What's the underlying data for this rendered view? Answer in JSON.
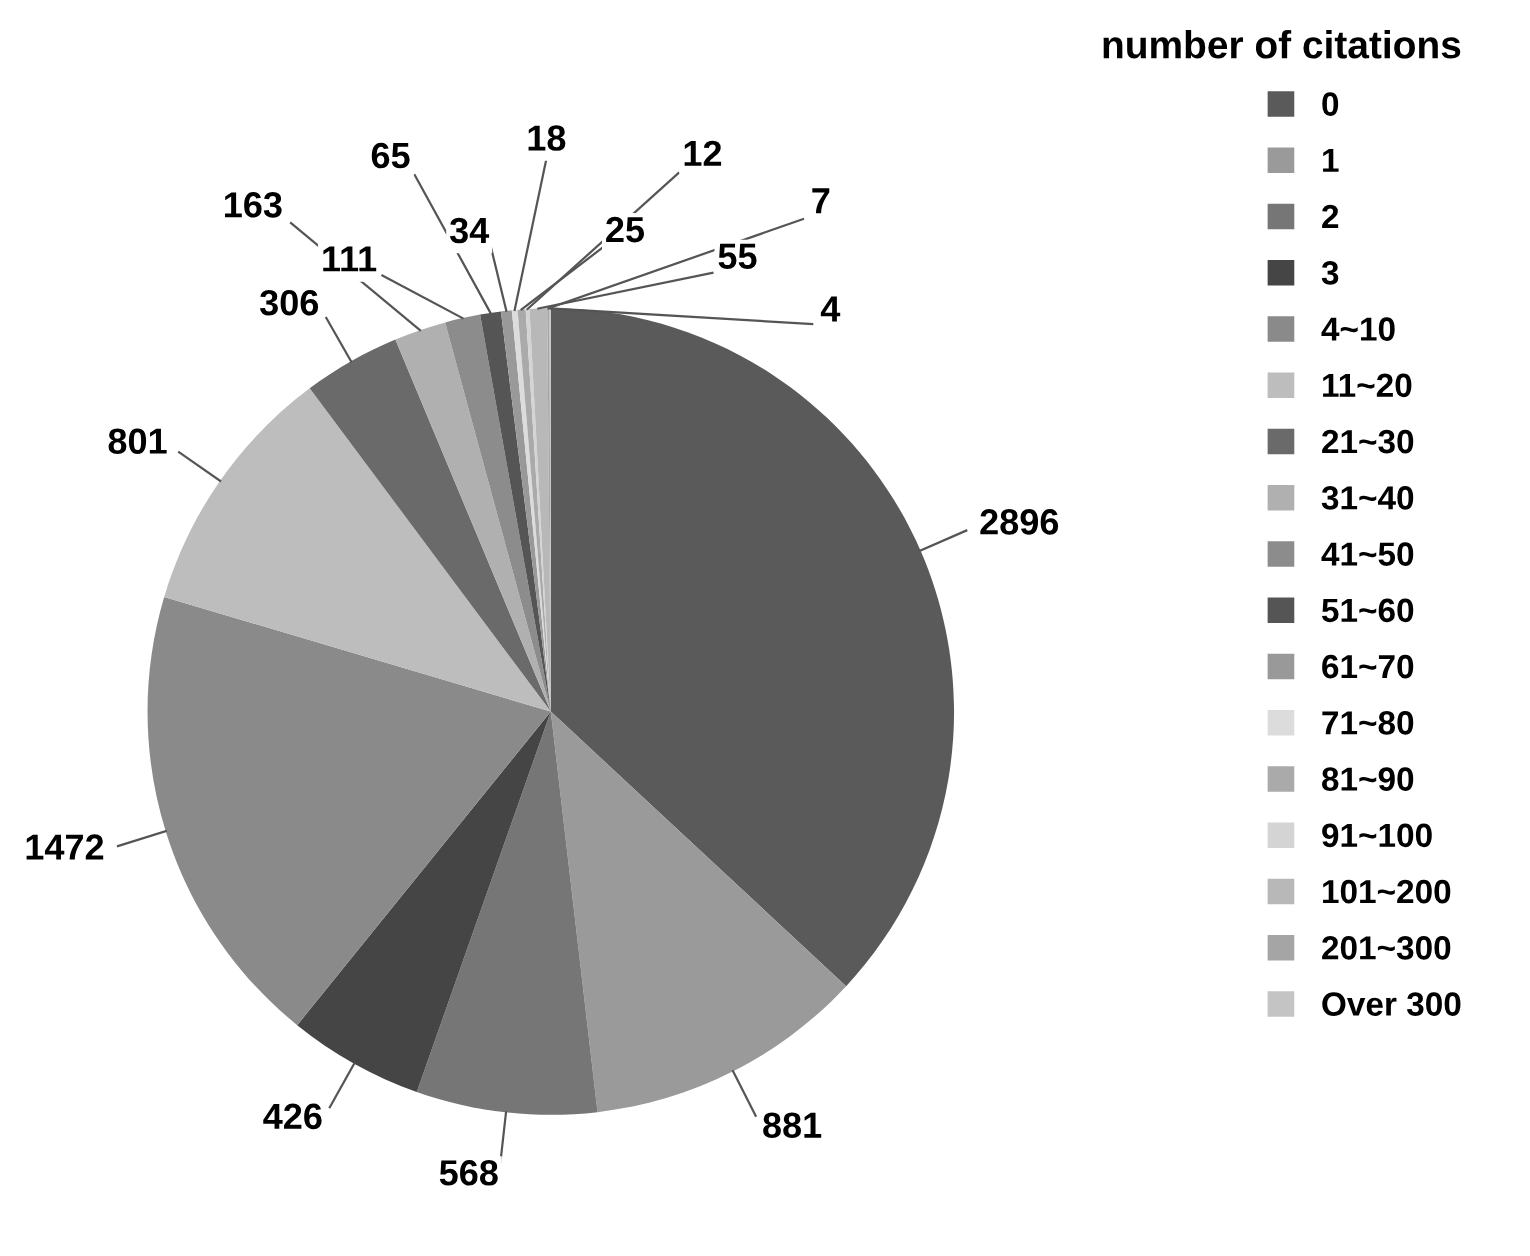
{
  "chart_data": {
    "type": "pie",
    "legend_title": "number of citations",
    "legend": "right",
    "data_labels": true,
    "categories": [
      "0",
      "1",
      "2",
      "3",
      "4~10",
      "11~20",
      "21~30",
      "31~40",
      "41~50",
      "51~60",
      "61~70",
      "71~80",
      "81~90",
      "91~100",
      "101~200",
      "201~300",
      "Over 300"
    ],
    "values": [
      2896,
      881,
      568,
      426,
      1472,
      801,
      306,
      163,
      111,
      65,
      34,
      18,
      25,
      12,
      55,
      7,
      4
    ],
    "colors": [
      "#5a5a5a",
      "#9a9a9a",
      "#767676",
      "#454545",
      "#8a8a8a",
      "#bdbdbd",
      "#6a6a6a",
      "#b0b0b0",
      "#8c8c8c",
      "#555555",
      "#999999",
      "#dcdcdc",
      "#aaaaaa",
      "#d4d4d4",
      "#b8b8b8",
      "#a5a5a5",
      "#c4c4c4"
    ]
  }
}
